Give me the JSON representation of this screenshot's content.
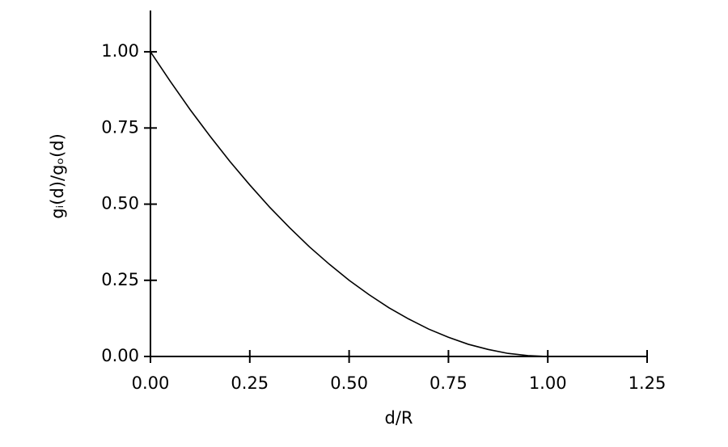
{
  "chart_data": {
    "type": "line",
    "x_label": "d/R",
    "y_label": "gᵢ(d)/gₒ(d)",
    "x": [
      0,
      0.05,
      0.1,
      0.15,
      0.2,
      0.25,
      0.3,
      0.35,
      0.4,
      0.45,
      0.5,
      0.55,
      0.6,
      0.65,
      0.7,
      0.75,
      0.8,
      0.85,
      0.9,
      0.95,
      1.0
    ],
    "series": [
      {
        "color": "#000000",
        "values": [
          1,
          0.903,
          0.81,
          0.723,
          0.64,
          0.563,
          0.49,
          0.423,
          0.36,
          0.303,
          0.25,
          0.203,
          0.16,
          0.123,
          0.09,
          0.063,
          0.04,
          0.023,
          0.01,
          0.003,
          0
        ]
      }
    ],
    "xlim": [
      0,
      1.25
    ],
    "ylim": [
      0,
      1.125
    ],
    "xticks": [
      {
        "value": 0,
        "label": "0.00"
      },
      {
        "value": 0.25,
        "label": "0.25"
      },
      {
        "value": 0.5,
        "label": "0.50"
      },
      {
        "value": 0.75,
        "label": "0.75"
      },
      {
        "value": 1,
        "label": "1.00"
      },
      {
        "value": 1.25,
        "label": "1.25"
      }
    ],
    "yticks": [
      {
        "value": 0,
        "label": "0.00"
      },
      {
        "value": 0.25,
        "label": "0.25"
      },
      {
        "value": 0.5,
        "label": "0.50"
      },
      {
        "value": 0.75,
        "label": "0.75"
      },
      {
        "value": 1,
        "label": "1.00"
      }
    ],
    "grid": false
  }
}
